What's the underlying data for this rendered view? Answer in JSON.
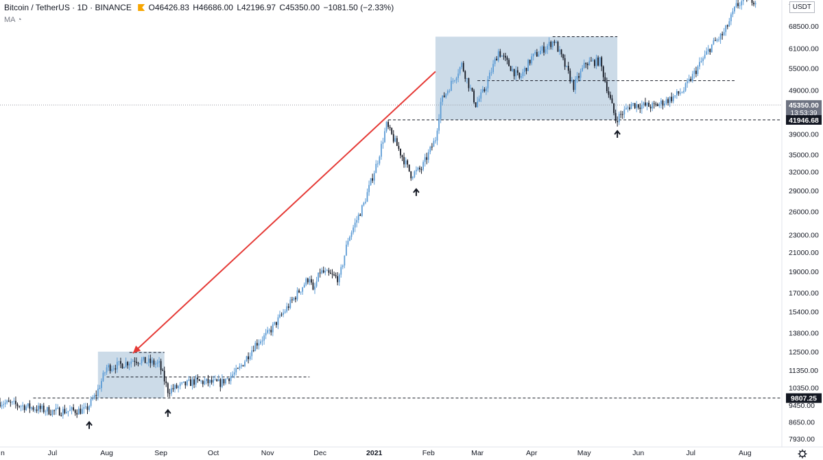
{
  "header": {
    "symbol": "Bitcoin / TetherUS · 1D · BINANCE",
    "open": "O46426.83",
    "high": "H46686.00",
    "low": "L42196.97",
    "close": "C45350.00",
    "change": "−1081.50 (−2.33%)",
    "indicator": "MA",
    "currency": "USDT"
  },
  "price_tags": {
    "last_price": "45350.00",
    "countdown": "13:53:39",
    "level_high": "41946.68",
    "level_low": "9807.25",
    "top_clip": "7"
  },
  "colors": {
    "accent_red": "#e53935",
    "box_fill": "#b0c7dc",
    "tag_dark": "#131722",
    "tag_gray": "#6e7382",
    "candle_up": "#5b9bd5",
    "candle_dn": "#131722"
  },
  "chart_data": {
    "type": "candlestick",
    "title": "",
    "xlabel": "",
    "ylabel": "",
    "y_scale": "log",
    "ylim": [
      7300,
      82000
    ],
    "y_ticks": [
      7930,
      8650,
      9450,
      10350,
      11350,
      12500,
      13800,
      15400,
      17000,
      19000,
      21000,
      23000,
      26000,
      29000,
      32000,
      35000,
      39000,
      49000,
      55000,
      61000,
      68500
    ],
    "x_tick_labels": [
      "n",
      "Jul",
      "Aug",
      "Sep",
      "Oct",
      "Nov",
      "Dec",
      "2021",
      "Feb",
      "Mar",
      "Apr",
      "May",
      "Jun",
      "Jul",
      "Aug"
    ],
    "x_tick_dates": [
      "2020-06-01",
      "2020-07-01",
      "2020-08-01",
      "2020-09-01",
      "2020-10-01",
      "2020-11-01",
      "2020-12-01",
      "2021-01-01",
      "2021-02-01",
      "2021-03-01",
      "2021-04-01",
      "2021-05-01",
      "2021-06-01",
      "2021-07-01",
      "2021-08-01"
    ],
    "anchors": [
      [
        "2020-06-01",
        9600
      ],
      [
        "2020-06-15",
        9400
      ],
      [
        "2020-07-01",
        9150
      ],
      [
        "2020-07-20",
        9200
      ],
      [
        "2020-07-26",
        10000
      ],
      [
        "2020-08-01",
        11500
      ],
      [
        "2020-08-10",
        11700
      ],
      [
        "2020-08-17",
        12000
      ],
      [
        "2020-08-31",
        11700
      ],
      [
        "2020-09-05",
        10200
      ],
      [
        "2020-09-20",
        10700
      ],
      [
        "2020-10-05",
        10600
      ],
      [
        "2020-10-15",
        11300
      ],
      [
        "2020-10-25",
        13000
      ],
      [
        "2020-11-01",
        13700
      ],
      [
        "2020-11-10",
        15300
      ],
      [
        "2020-11-25",
        18500
      ],
      [
        "2020-11-27",
        17000
      ],
      [
        "2020-12-01",
        19000
      ],
      [
        "2020-12-12",
        18300
      ],
      [
        "2020-12-17",
        22500
      ],
      [
        "2020-12-26",
        27000
      ],
      [
        "2021-01-03",
        34000
      ],
      [
        "2021-01-08",
        40800
      ],
      [
        "2021-01-15",
        36000
      ],
      [
        "2021-01-22",
        31500
      ],
      [
        "2021-01-28",
        32500
      ],
      [
        "2021-02-05",
        38000
      ],
      [
        "2021-02-08",
        46000
      ],
      [
        "2021-02-20",
        56000
      ],
      [
        "2021-02-28",
        45500
      ],
      [
        "2021-03-05",
        49000
      ],
      [
        "2021-03-13",
        60000
      ],
      [
        "2021-03-25",
        52000
      ],
      [
        "2021-04-01",
        58000
      ],
      [
        "2021-04-14",
        63500
      ],
      [
        "2021-04-25",
        50000
      ],
      [
        "2021-05-02",
        56500
      ],
      [
        "2021-05-10",
        57000
      ],
      [
        "2021-05-19",
        42000
      ],
      [
        "2021-05-28",
        45500
      ],
      [
        "2021-06-10",
        45000
      ],
      [
        "2021-06-20",
        47000
      ],
      [
        "2021-06-27",
        49000
      ],
      [
        "2021-07-06",
        56000
      ],
      [
        "2021-07-13",
        62000
      ],
      [
        "2021-07-20",
        66000
      ],
      [
        "2021-07-27",
        76000
      ],
      [
        "2021-08-03",
        80000
      ],
      [
        "2021-08-07",
        78000
      ]
    ],
    "annotations": {
      "zone_2020": {
        "x": [
          "2020-07-27",
          "2020-09-03"
        ],
        "y": [
          9807.25,
          12500
        ]
      },
      "zone_2021": {
        "x": [
          "2021-02-05",
          "2021-05-20"
        ],
        "y": [
          41946.68,
          64800
        ]
      },
      "level_lines": [
        {
          "y": 9807.25,
          "x": [
            "2020-06-20",
            "2021-08-25"
          ]
        },
        {
          "y": 12450,
          "x": [
            "2020-08-14",
            "2020-09-03"
          ]
        },
        {
          "y": 10950,
          "x": [
            "2020-08-01",
            "2020-11-25"
          ]
        },
        {
          "y": 41946.68,
          "x": [
            "2021-01-09",
            "2021-08-25"
          ]
        },
        {
          "y": 51500,
          "x": [
            "2021-03-01",
            "2021-07-26"
          ]
        },
        {
          "y": 64800,
          "x": [
            "2021-04-13",
            "2021-05-20"
          ]
        },
        {
          "y": 45350,
          "x": [
            "2020-05-01",
            "2021-08-25"
          ],
          "style": "dotted"
        }
      ],
      "arrow": {
        "from": [
          "2021-02-05",
          54000
        ],
        "to": [
          "2020-08-16",
          12400
        ]
      },
      "up_markers": [
        [
          "2020-07-22",
          8500
        ],
        [
          "2020-09-05",
          9050
        ],
        [
          "2021-01-25",
          28700
        ],
        [
          "2021-05-20",
          38900
        ]
      ]
    }
  }
}
